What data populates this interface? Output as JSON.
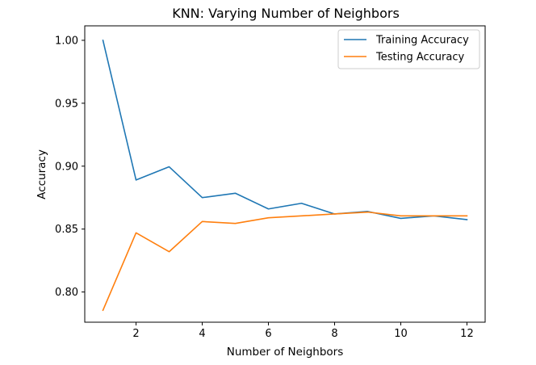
{
  "chart_data": {
    "type": "line",
    "title": "KNN: Varying Number of Neighbors",
    "xlabel": "Number of Neighbors",
    "ylabel": "Accuracy",
    "x": [
      1,
      2,
      3,
      4,
      5,
      6,
      7,
      8,
      9,
      10,
      11,
      12
    ],
    "xlim": [
      0.45,
      12.55
    ],
    "ylim": [
      0.776,
      1.0115
    ],
    "xticks": [
      2,
      4,
      6,
      8,
      10,
      12
    ],
    "yticks": [
      0.8,
      0.85,
      0.9,
      0.95,
      1.0
    ],
    "ytick_labels": [
      "0.80",
      "0.85",
      "0.90",
      "0.95",
      "1.00"
    ],
    "grid": false,
    "legend_position": "top-right",
    "series": [
      {
        "name": "Training Accuracy",
        "color": "#1f77b4",
        "values": [
          1.0,
          0.889,
          0.8995,
          0.875,
          0.8785,
          0.866,
          0.8705,
          0.862,
          0.864,
          0.8585,
          0.8605,
          0.8575
        ]
      },
      {
        "name": "Testing Accuracy",
        "color": "#ff7f0e",
        "values": [
          0.7855,
          0.847,
          0.832,
          0.856,
          0.8545,
          0.859,
          0.8605,
          0.862,
          0.8635,
          0.8605,
          0.8605,
          0.8605
        ]
      }
    ]
  }
}
